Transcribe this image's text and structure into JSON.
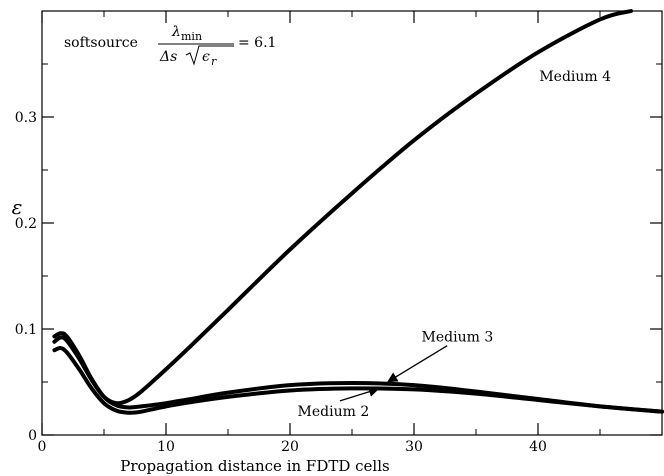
{
  "chart_data": {
    "type": "line",
    "xlabel": "Propagation distance in FDTD cells",
    "ylabel": "ε",
    "xlim": [
      0,
      50
    ],
    "ylim": [
      0,
      0.4
    ],
    "x_ticks": [
      0,
      10,
      20,
      30,
      40
    ],
    "x_tick_labels": [
      "0",
      "10",
      "20",
      "30",
      "40"
    ],
    "x_minor_step": 5,
    "y_ticks": [
      0,
      0.1,
      0.2,
      0.3
    ],
    "y_tick_labels": [
      "0",
      "0.1",
      "0.2",
      "0.3"
    ],
    "y_minor_step": 0.05,
    "grid": false,
    "legend": "none",
    "annotation": {
      "prefix": "softsource",
      "numerator": "λ",
      "numerator_sub": "min",
      "denominator_left": "Δs",
      "denominator_radicand": "ϵ",
      "denominator_radicand_sub": "r",
      "equals_value": "= 6.1"
    },
    "series": [
      {
        "name": "Medium 4",
        "x": [
          1,
          1.5,
          2,
          3,
          4,
          5,
          6,
          7,
          8,
          10,
          12,
          15,
          20,
          25,
          30,
          35,
          40,
          45,
          47.5
        ],
        "y": [
          0.088,
          0.092,
          0.089,
          0.072,
          0.052,
          0.036,
          0.03,
          0.033,
          0.041,
          0.062,
          0.084,
          0.118,
          0.175,
          0.228,
          0.278,
          0.322,
          0.361,
          0.392,
          0.4
        ]
      },
      {
        "name": "Medium 3",
        "x": [
          1,
          1.5,
          2,
          3,
          4,
          5,
          6,
          7,
          8,
          10,
          12,
          15,
          20,
          25,
          30,
          35,
          40,
          45,
          50
        ],
        "y": [
          0.093,
          0.096,
          0.093,
          0.075,
          0.053,
          0.036,
          0.028,
          0.026,
          0.027,
          0.03,
          0.034,
          0.04,
          0.047,
          0.049,
          0.047,
          0.041,
          0.034,
          0.027,
          0.022
        ]
      },
      {
        "name": "Medium 2",
        "x": [
          1,
          1.5,
          2,
          3,
          4,
          5,
          6,
          7,
          8,
          10,
          12,
          15,
          20,
          25,
          30,
          35,
          40,
          45,
          50
        ],
        "y": [
          0.08,
          0.082,
          0.078,
          0.062,
          0.044,
          0.03,
          0.023,
          0.021,
          0.022,
          0.027,
          0.031,
          0.036,
          0.042,
          0.044,
          0.043,
          0.039,
          0.033,
          0.027,
          0.022
        ]
      }
    ],
    "labels": [
      {
        "text": "Medium 4",
        "x": 43,
        "y": 0.334,
        "anchor": "middle"
      },
      {
        "text": "Medium 3",
        "x": 33.5,
        "y": 0.088,
        "anchor": "middle",
        "arrow_to_x": 28,
        "arrow_to_y": 0.051
      },
      {
        "text": "Medium 2",
        "x": 23.5,
        "y": 0.018,
        "anchor": "middle",
        "arrow_to_x": 27,
        "arrow_to_y": 0.043
      }
    ]
  }
}
